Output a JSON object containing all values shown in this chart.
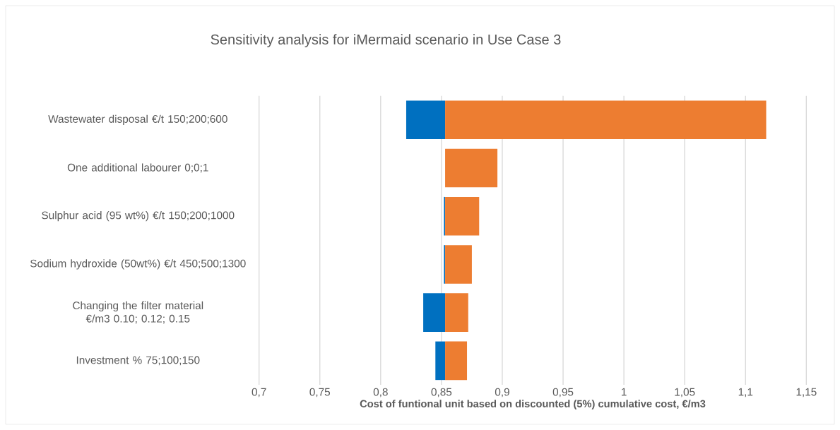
{
  "chart_data": {
    "type": "bar",
    "orientation": "horizontal",
    "title": "Sensitivity analysis for iMermaid scenario in Use Case 3",
    "xlabel": "Cost of funtional unit based on discounted (5%) cumulative cost, €/m3",
    "categories": [
      "Wastewater disposal €/t 150;200;600",
      "One additional labourer  0;0;1",
      "Sulphur acid (95 wt%) €/t 150;200;1000",
      "Sodium hydroxide (50wt%) €/t 450;500;1300",
      "Changing the filter material €/m3 0.10; 0.12; 0.15",
      "Investment % 75;100;150"
    ],
    "series": [
      {
        "color": "#0070c0",
        "base": [
          0.821,
          null,
          0.852,
          0.852,
          0.835,
          0.845
        ],
        "values": [
          0.032,
          null,
          0.001,
          0.001,
          0.018,
          0.008
        ]
      },
      {
        "color": "#ed7d31",
        "base": [
          0.853,
          0.853,
          0.853,
          0.853,
          0.853,
          0.853
        ],
        "values": [
          0.264,
          0.043,
          0.028,
          0.022,
          0.019,
          0.018
        ]
      }
    ],
    "xlim": [
      0.7,
      1.15
    ],
    "xticks": [
      {
        "value": 0.7,
        "label": "0,7"
      },
      {
        "value": 0.75,
        "label": "0,75"
      },
      {
        "value": 0.8,
        "label": "0,8"
      },
      {
        "value": 0.85,
        "label": "0,85"
      },
      {
        "value": 0.9,
        "label": "0,9"
      },
      {
        "value": 0.95,
        "label": "0,95"
      },
      {
        "value": 1,
        "label": "1"
      },
      {
        "value": 1.05,
        "label": "1,05"
      },
      {
        "value": 1.1,
        "label": "1,1"
      },
      {
        "value": 1.15,
        "label": "1,15"
      }
    ],
    "grid": "x"
  }
}
